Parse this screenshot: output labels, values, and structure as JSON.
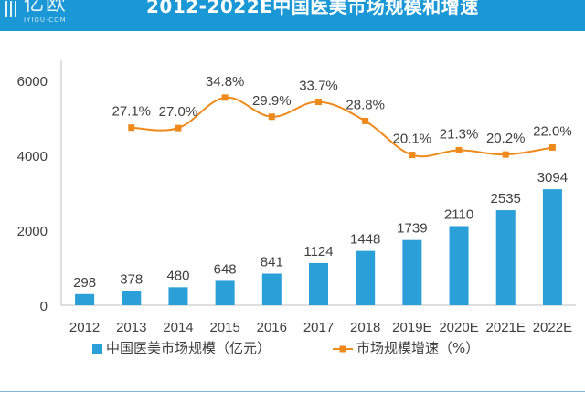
{
  "header": {
    "logo_name": "亿欧",
    "logo_sub": "IYIOU·COM",
    "title": "2012-2022E中国医美市场规模和增速"
  },
  "colors": {
    "header_bg": "#1a97d5",
    "bar": "#2a9fd8",
    "line": "#ee8a1c",
    "grid": "#d9d9d9",
    "axis_text": "#404040"
  },
  "chart_data": {
    "type": "bar",
    "categories": [
      "2012",
      "2013",
      "2014",
      "2015",
      "2016",
      "2017",
      "2018",
      "2019E",
      "2020E",
      "2021E",
      "2022E"
    ],
    "ylim": [
      0,
      6000
    ],
    "yticks": [
      0,
      2000,
      4000,
      6000
    ],
    "grid": false,
    "series": [
      {
        "name": "中国医美市场规模（亿元）",
        "type": "bar",
        "values": [
          298,
          378,
          480,
          648,
          841,
          1124,
          1448,
          1739,
          2110,
          2535,
          3094
        ],
        "labels": [
          "298",
          "378",
          "480",
          "648",
          "841",
          "1124",
          "1448",
          "1739",
          "2110",
          "2535",
          "3094"
        ]
      },
      {
        "name": "市场规模增速（%）",
        "type": "line",
        "values": [
          null,
          27.1,
          27.0,
          34.8,
          29.9,
          33.7,
          28.8,
          20.1,
          21.3,
          20.2,
          22.0
        ],
        "labels": [
          "",
          "27.1%",
          "27.0%",
          "34.8%",
          "29.9%",
          "33.7%",
          "28.8%",
          "20.1%",
          "21.3%",
          "20.2%",
          "22.0%"
        ]
      }
    ],
    "legend_position": "bottom"
  }
}
